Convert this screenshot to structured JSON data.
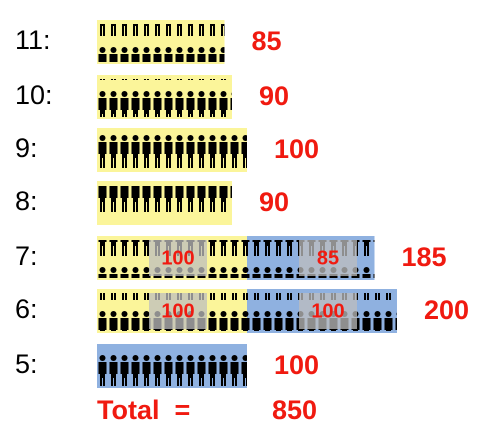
{
  "chart_data": {
    "type": "pictogram",
    "categories": [
      "11:",
      "10:",
      "9:",
      "8:",
      "7:",
      "6:",
      "5:"
    ],
    "series": [
      {
        "color": "#fbf59a",
        "values": [
          85,
          90,
          100,
          90,
          100,
          100,
          null
        ]
      },
      {
        "color": "#8fb1e0",
        "values": [
          null,
          null,
          null,
          null,
          85,
          100,
          100
        ]
      }
    ],
    "totals": [
      85,
      90,
      100,
      90,
      185,
      200,
      100
    ],
    "total_label": "Total  =",
    "total": 850
  }
}
